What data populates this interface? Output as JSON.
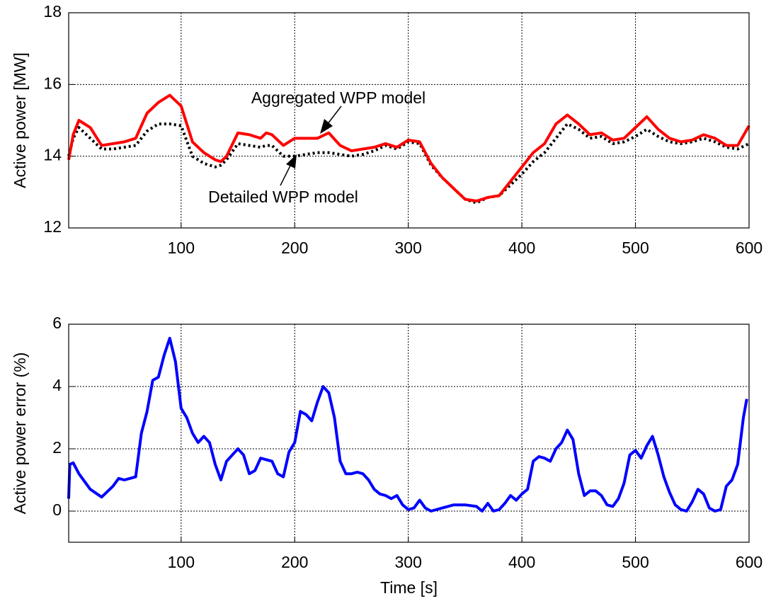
{
  "chart_data": [
    {
      "type": "line",
      "ylabel": "Active power [MW]",
      "annotations": [
        "Aggregated WPP model",
        "Detailed WPP model"
      ],
      "xlim": [
        1,
        600
      ],
      "ylim": [
        12,
        18
      ],
      "xticks": [
        100,
        200,
        300,
        400,
        500,
        600
      ],
      "yticks": [
        12,
        14,
        16,
        18
      ],
      "grid": true,
      "x": [
        1,
        5,
        10,
        20,
        30,
        40,
        50,
        60,
        70,
        80,
        90,
        100,
        110,
        120,
        130,
        135,
        140,
        150,
        160,
        170,
        175,
        180,
        190,
        200,
        210,
        220,
        230,
        240,
        250,
        260,
        270,
        280,
        290,
        300,
        310,
        320,
        330,
        340,
        350,
        360,
        370,
        380,
        390,
        400,
        410,
        420,
        430,
        440,
        450,
        460,
        470,
        480,
        490,
        500,
        510,
        520,
        530,
        540,
        550,
        560,
        570,
        580,
        590,
        600
      ],
      "series": [
        {
          "name": "Detailed WPP model",
          "color": "#000000",
          "line_style": "dotted",
          "values": [
            14.0,
            14.5,
            14.8,
            14.5,
            14.2,
            14.2,
            14.25,
            14.3,
            14.7,
            14.9,
            14.9,
            14.85,
            14.0,
            13.8,
            13.7,
            13.75,
            13.9,
            14.35,
            14.3,
            14.25,
            14.3,
            14.3,
            14.0,
            14.0,
            14.05,
            14.1,
            14.1,
            14.05,
            14.0,
            14.05,
            14.15,
            14.3,
            14.2,
            14.4,
            14.35,
            13.75,
            13.4,
            13.1,
            12.8,
            12.7,
            12.85,
            12.9,
            13.2,
            13.5,
            13.85,
            14.1,
            14.5,
            14.9,
            14.75,
            14.5,
            14.55,
            14.35,
            14.4,
            14.55,
            14.75,
            14.55,
            14.4,
            14.35,
            14.4,
            14.5,
            14.4,
            14.25,
            14.2,
            14.35
          ]
        },
        {
          "name": "Aggregated WPP model",
          "color": "#ff0000",
          "line_style": "solid",
          "values": [
            13.9,
            14.6,
            15.0,
            14.8,
            14.3,
            14.35,
            14.4,
            14.5,
            15.2,
            15.5,
            15.7,
            15.4,
            14.4,
            14.1,
            13.9,
            13.85,
            14.0,
            14.65,
            14.6,
            14.5,
            14.65,
            14.6,
            14.3,
            14.5,
            14.5,
            14.5,
            14.65,
            14.3,
            14.15,
            14.2,
            14.25,
            14.35,
            14.25,
            14.45,
            14.4,
            13.8,
            13.4,
            13.1,
            12.8,
            12.75,
            12.85,
            12.9,
            13.3,
            13.7,
            14.1,
            14.35,
            14.9,
            15.15,
            14.9,
            14.6,
            14.65,
            14.45,
            14.5,
            14.8,
            15.1,
            14.75,
            14.5,
            14.4,
            14.45,
            14.6,
            14.5,
            14.3,
            14.3,
            14.85
          ]
        }
      ]
    },
    {
      "type": "line",
      "xlabel": "Time [s]",
      "ylabel": "Active power error (%)",
      "xlim": [
        1,
        600
      ],
      "ylim": [
        -1,
        6
      ],
      "xticks": [
        100,
        200,
        300,
        400,
        500,
        600
      ],
      "yticks": [
        0,
        2,
        4,
        6
      ],
      "grid": true,
      "x": [
        1,
        2,
        5,
        10,
        20,
        30,
        40,
        45,
        50,
        55,
        60,
        65,
        70,
        75,
        80,
        85,
        90,
        95,
        100,
        105,
        110,
        115,
        120,
        125,
        130,
        135,
        140,
        145,
        150,
        155,
        160,
        165,
        170,
        175,
        180,
        185,
        190,
        195,
        200,
        205,
        210,
        215,
        220,
        225,
        230,
        235,
        240,
        245,
        250,
        255,
        260,
        265,
        270,
        275,
        280,
        285,
        290,
        295,
        300,
        305,
        310,
        315,
        320,
        330,
        340,
        350,
        360,
        365,
        370,
        375,
        380,
        385,
        390,
        395,
        400,
        405,
        410,
        415,
        420,
        425,
        430,
        435,
        440,
        445,
        450,
        455,
        460,
        465,
        470,
        475,
        480,
        485,
        490,
        495,
        500,
        505,
        510,
        515,
        520,
        525,
        530,
        535,
        540,
        545,
        550,
        555,
        560,
        565,
        570,
        575,
        580,
        585,
        590,
        595,
        598
      ],
      "series": [
        {
          "name": "Active power error",
          "color": "#0000ff",
          "line_style": "solid",
          "values": [
            0.4,
            1.5,
            1.55,
            1.2,
            0.7,
            0.45,
            0.8,
            1.05,
            1.0,
            1.05,
            1.1,
            2.5,
            3.2,
            4.2,
            4.3,
            5.0,
            5.55,
            4.8,
            3.3,
            3.0,
            2.5,
            2.2,
            2.4,
            2.2,
            1.5,
            1.0,
            1.6,
            1.8,
            2.0,
            1.8,
            1.2,
            1.3,
            1.7,
            1.65,
            1.6,
            1.2,
            1.1,
            1.9,
            2.2,
            3.2,
            3.1,
            2.9,
            3.5,
            4.0,
            3.8,
            3.0,
            1.6,
            1.2,
            1.2,
            1.25,
            1.2,
            1.0,
            0.7,
            0.55,
            0.5,
            0.4,
            0.5,
            0.2,
            0.05,
            0.1,
            0.35,
            0.1,
            0.0,
            0.1,
            0.2,
            0.2,
            0.15,
            0.0,
            0.25,
            0.0,
            0.05,
            0.25,
            0.5,
            0.35,
            0.55,
            0.7,
            1.6,
            1.75,
            1.7,
            1.6,
            2.0,
            2.2,
            2.6,
            2.3,
            1.2,
            0.5,
            0.65,
            0.65,
            0.5,
            0.2,
            0.15,
            0.4,
            0.9,
            1.8,
            1.95,
            1.7,
            2.1,
            2.4,
            1.8,
            1.1,
            0.6,
            0.2,
            0.05,
            0.0,
            0.3,
            0.7,
            0.55,
            0.1,
            0.0,
            0.05,
            0.8,
            1.0,
            1.5,
            3.0,
            3.6
          ]
        }
      ]
    }
  ]
}
